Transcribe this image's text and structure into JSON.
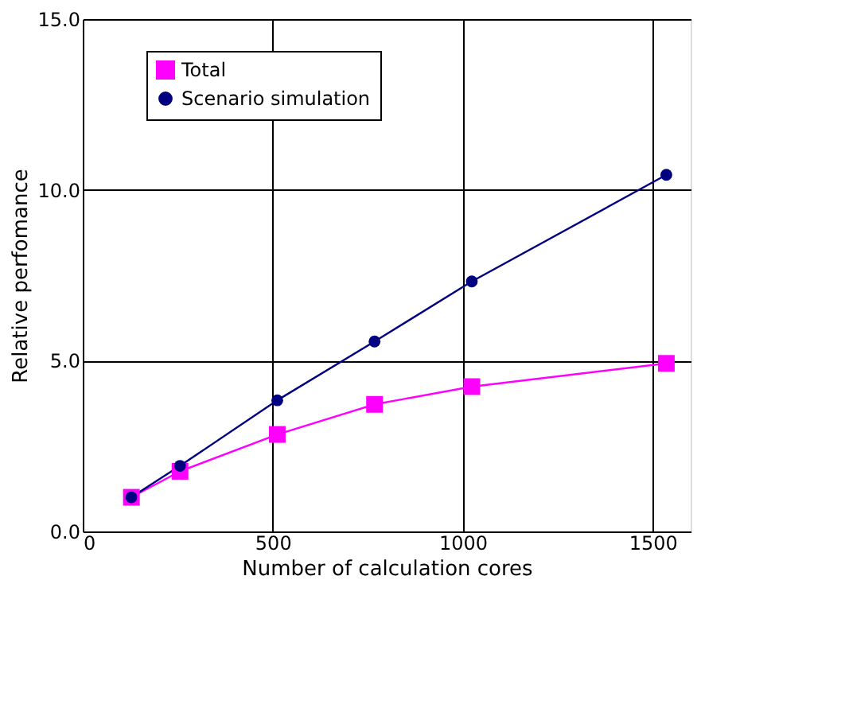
{
  "chart_data": {
    "type": "line",
    "xlabel": "Number of calculation cores",
    "ylabel": "Relative perfomance",
    "x": [
      128,
      256,
      512,
      768,
      1024,
      1536
    ],
    "series": [
      {
        "name": "Total",
        "color": "#ff00ff",
        "marker": "square",
        "values": [
          1.0,
          1.76,
          2.84,
          3.72,
          4.24,
          4.92
        ]
      },
      {
        "name": "Scenario simulation",
        "color": "#000080",
        "marker": "circle",
        "values": [
          1.0,
          1.92,
          3.84,
          5.56,
          7.32,
          10.44
        ]
      }
    ],
    "xlim": [
      0,
      1600
    ],
    "xticks": [
      0,
      500,
      1000,
      1500
    ],
    "ylim": [
      0,
      15
    ],
    "yticks": [
      {
        "value": 0,
        "label": "0.0"
      },
      {
        "value": 5,
        "label": "5.0"
      },
      {
        "value": 10,
        "label": "10.0"
      },
      {
        "value": 15,
        "label": "15.0"
      }
    ],
    "grid": true,
    "legend": "top left",
    "line_style": "solid"
  }
}
